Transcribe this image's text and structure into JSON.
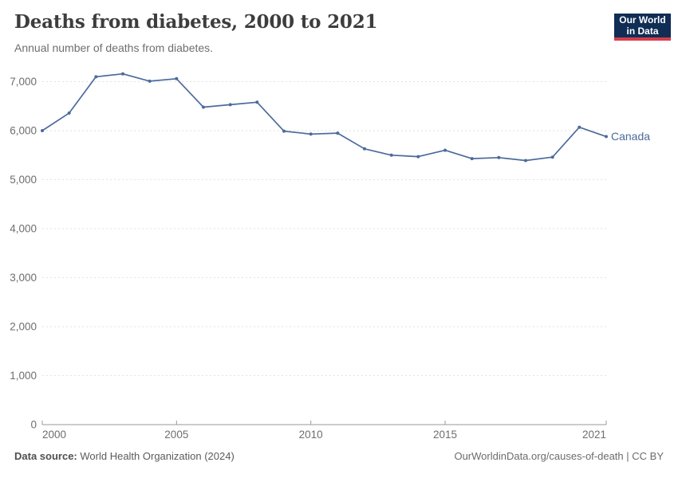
{
  "header": {
    "title": "Deaths from diabetes, 2000 to 2021",
    "subtitle": "Annual number of deaths from diabetes.",
    "logo": {
      "line1": "Our World",
      "line2": "in Data"
    }
  },
  "branding": {
    "logo_bg": "#0f2d55",
    "logo_accent": "#d73c4b"
  },
  "chart_data": {
    "type": "line",
    "title": "Deaths from diabetes, 2000 to 2021",
    "subtitle": "Annual number of deaths from diabetes.",
    "x": [
      2000,
      2001,
      2002,
      2003,
      2004,
      2005,
      2006,
      2007,
      2008,
      2009,
      2010,
      2011,
      2012,
      2013,
      2014,
      2015,
      2016,
      2017,
      2018,
      2019,
      2020,
      2021
    ],
    "series": [
      {
        "name": "Canada",
        "color": "#4C6A9C",
        "values": [
          6000,
          6360,
          7100,
          7160,
          7010,
          7060,
          6480,
          6530,
          6580,
          5990,
          5930,
          5950,
          5630,
          5500,
          5470,
          5600,
          5430,
          5450,
          5390,
          5460,
          6070,
          5880
        ]
      }
    ],
    "xlabel": "",
    "ylabel": "",
    "ylim": [
      0,
      7000
    ],
    "yticks": [
      0,
      1000,
      2000,
      3000,
      4000,
      5000,
      6000,
      7000
    ],
    "xticks": [
      2000,
      2005,
      2010,
      2015,
      2021
    ],
    "grid": "horizontal-dashed",
    "legend": "line-end-label",
    "colors": {
      "grid": "#e2e2e2",
      "axis": "#9a9a9a",
      "tick_label": "#6e6e6e"
    }
  },
  "footer": {
    "data_source_label": "Data source:",
    "data_source_value": "World Health Organization (2024)",
    "citation_url": "OurWorldinData.org/causes-of-death",
    "citation_suffix": " | CC BY"
  }
}
